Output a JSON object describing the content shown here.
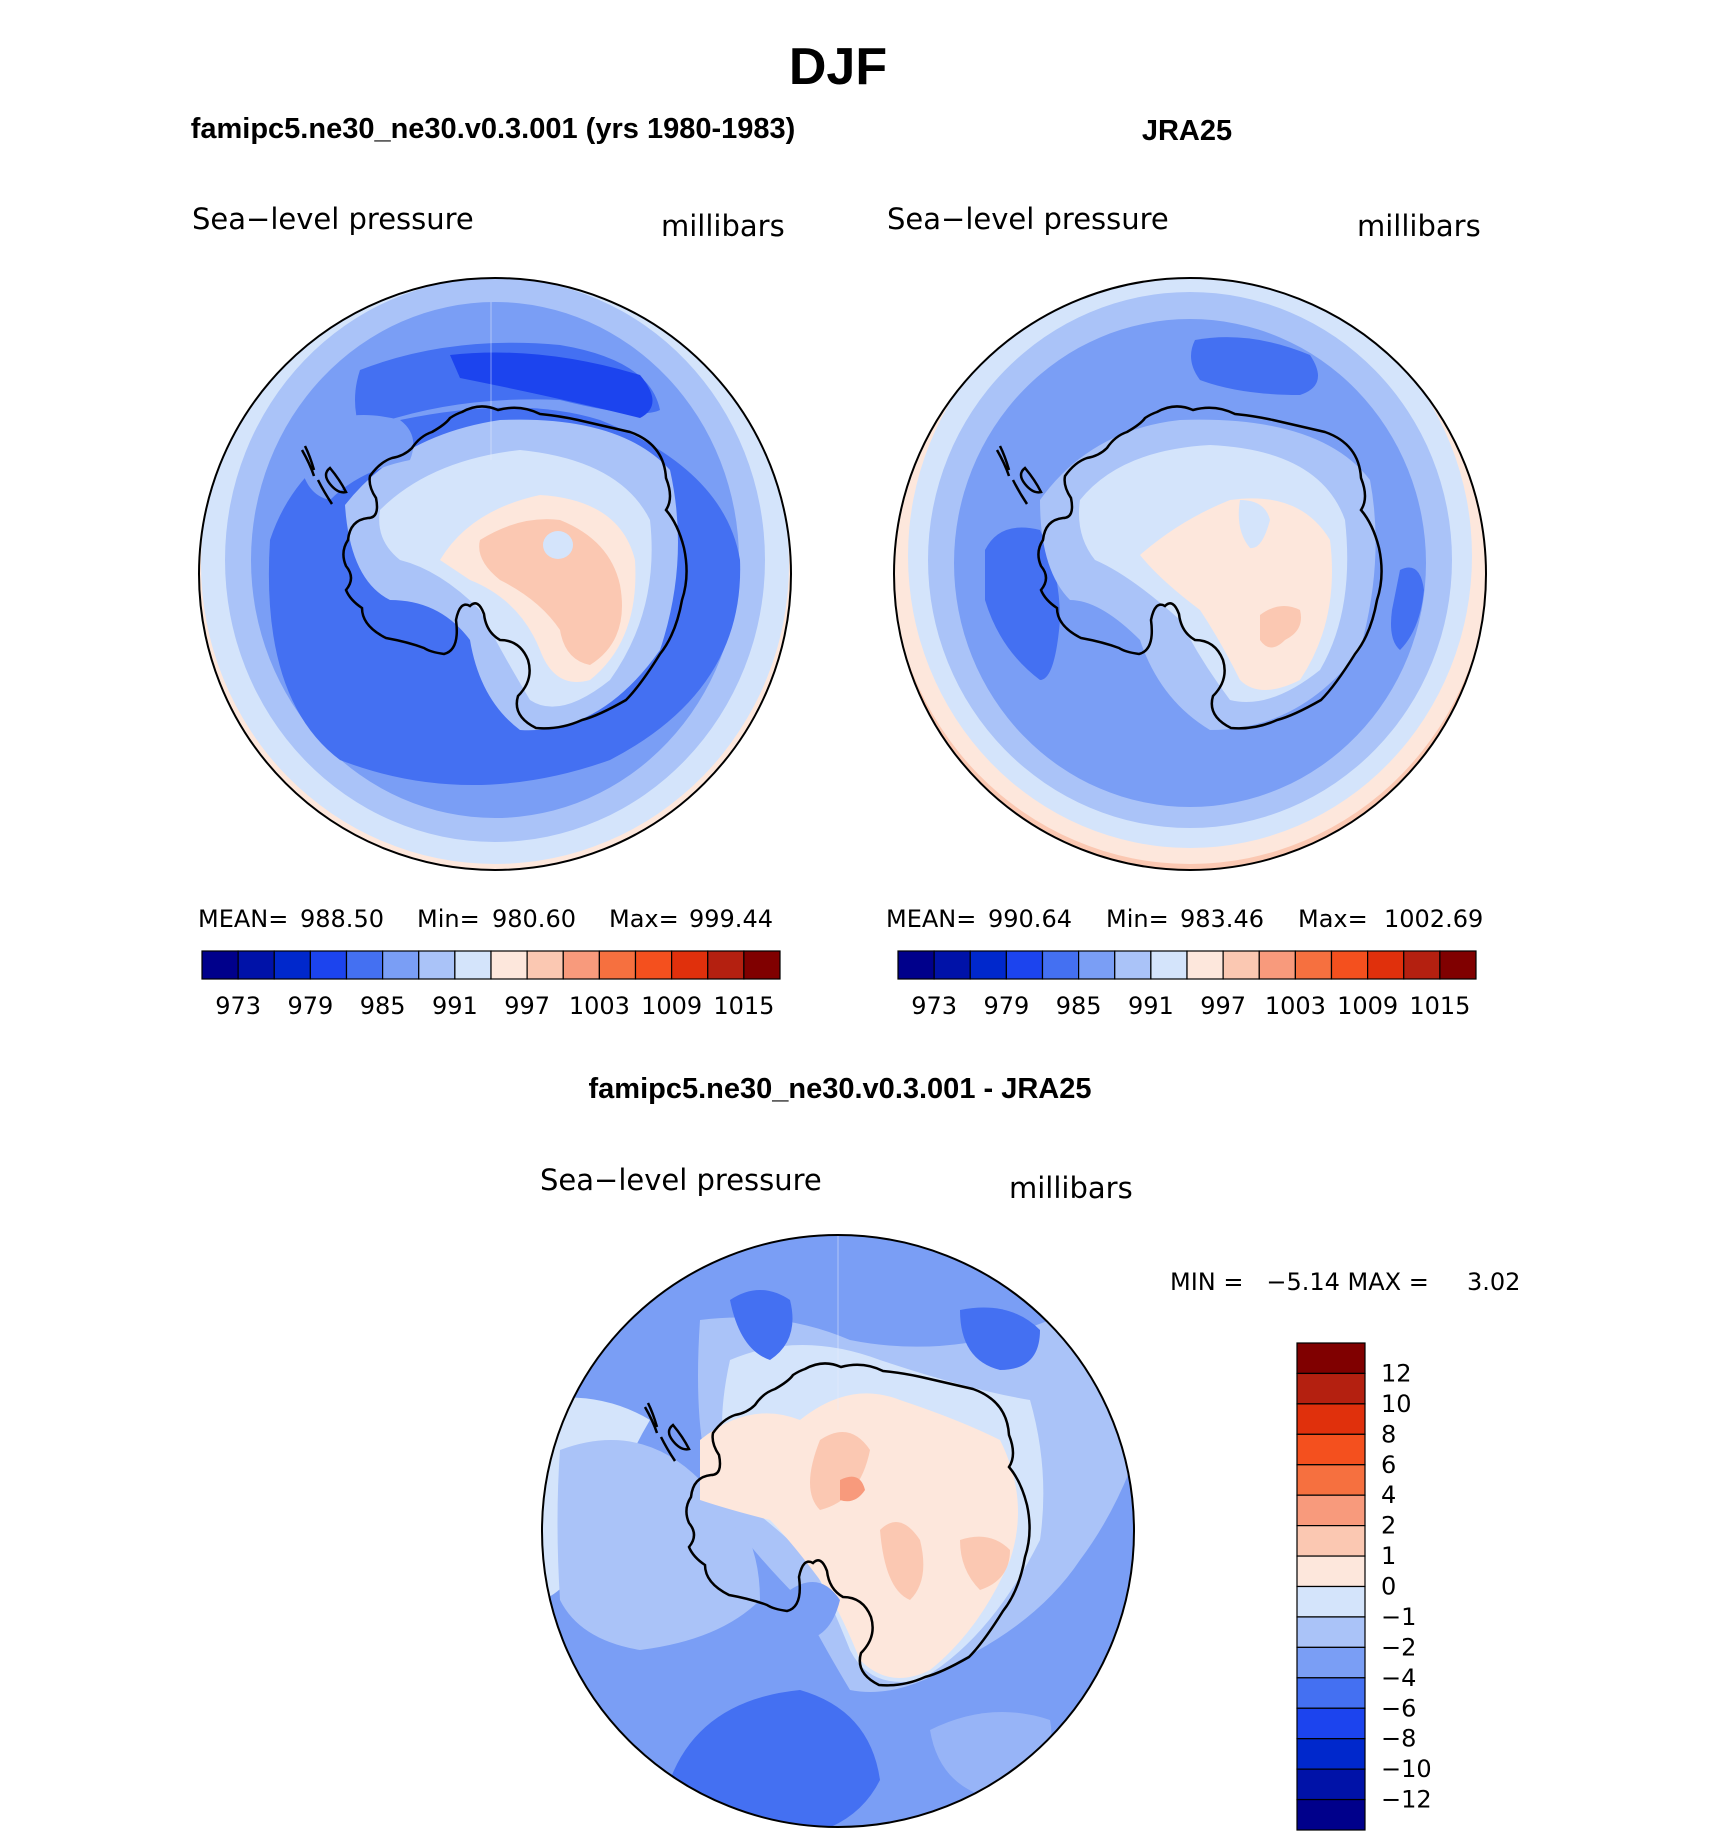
{
  "title": "DJF",
  "colors": {
    "abs_scale": [
      "#00008b",
      "#0012a8",
      "#0028cc",
      "#1c44ee",
      "#4470f2",
      "#7a9ef5",
      "#aac3f8",
      "#d4e4fb",
      "#fde7dc",
      "#fbc8b2",
      "#f89a7c",
      "#f6703f",
      "#f4501e",
      "#e0300c",
      "#b42010",
      "#800000"
    ],
    "diff_scale": [
      "#00008b",
      "#0012a8",
      "#0028cc",
      "#1c44ee",
      "#4470f2",
      "#7a9ef5",
      "#aac3f8",
      "#d4e4fb",
      "#fde7dc",
      "#fbc8b2",
      "#f89a7c",
      "#f6703f",
      "#f4501e",
      "#e0300c",
      "#b42010",
      "#800000"
    ],
    "coast": "#000000"
  },
  "panels": [
    {
      "header": "famipc5.ne30_ne30.v0.3.001 (yrs 1980-1983)",
      "variable": "Sea−level pressure",
      "units": "millibars",
      "stats": {
        "mean_label": "MEAN=",
        "mean": "988.50",
        "min_label": "Min=",
        "min": "980.60",
        "max_label": "Max=",
        "max": "999.44"
      },
      "colorbar_ticks": [
        "973",
        "979",
        "985",
        "991",
        "997",
        "1003",
        "1009",
        "1015"
      ]
    },
    {
      "header": "JRA25",
      "variable": "Sea−level pressure",
      "units": "millibars",
      "stats": {
        "mean_label": "MEAN=",
        "mean": "990.64",
        "min_label": "Min=",
        "min": "983.46",
        "max_label": "Max=",
        "max": "1002.69"
      },
      "colorbar_ticks": [
        "973",
        "979",
        "985",
        "991",
        "997",
        "1003",
        "1009",
        "1015"
      ]
    }
  ],
  "difference": {
    "header": "famipc5.ne30_ne30.v0.3.001 - JRA25",
    "variable": "Sea−level pressure",
    "units": "millibars",
    "minmax_text": "MIN =   −5.14 MAX =     3.02",
    "colorbar_ticks": [
      "12",
      "10",
      "8",
      "6",
      "4",
      "2",
      "1",
      "0",
      "−1",
      "−2",
      "−4",
      "−6",
      "−8",
      "−10",
      "−12"
    ]
  }
}
